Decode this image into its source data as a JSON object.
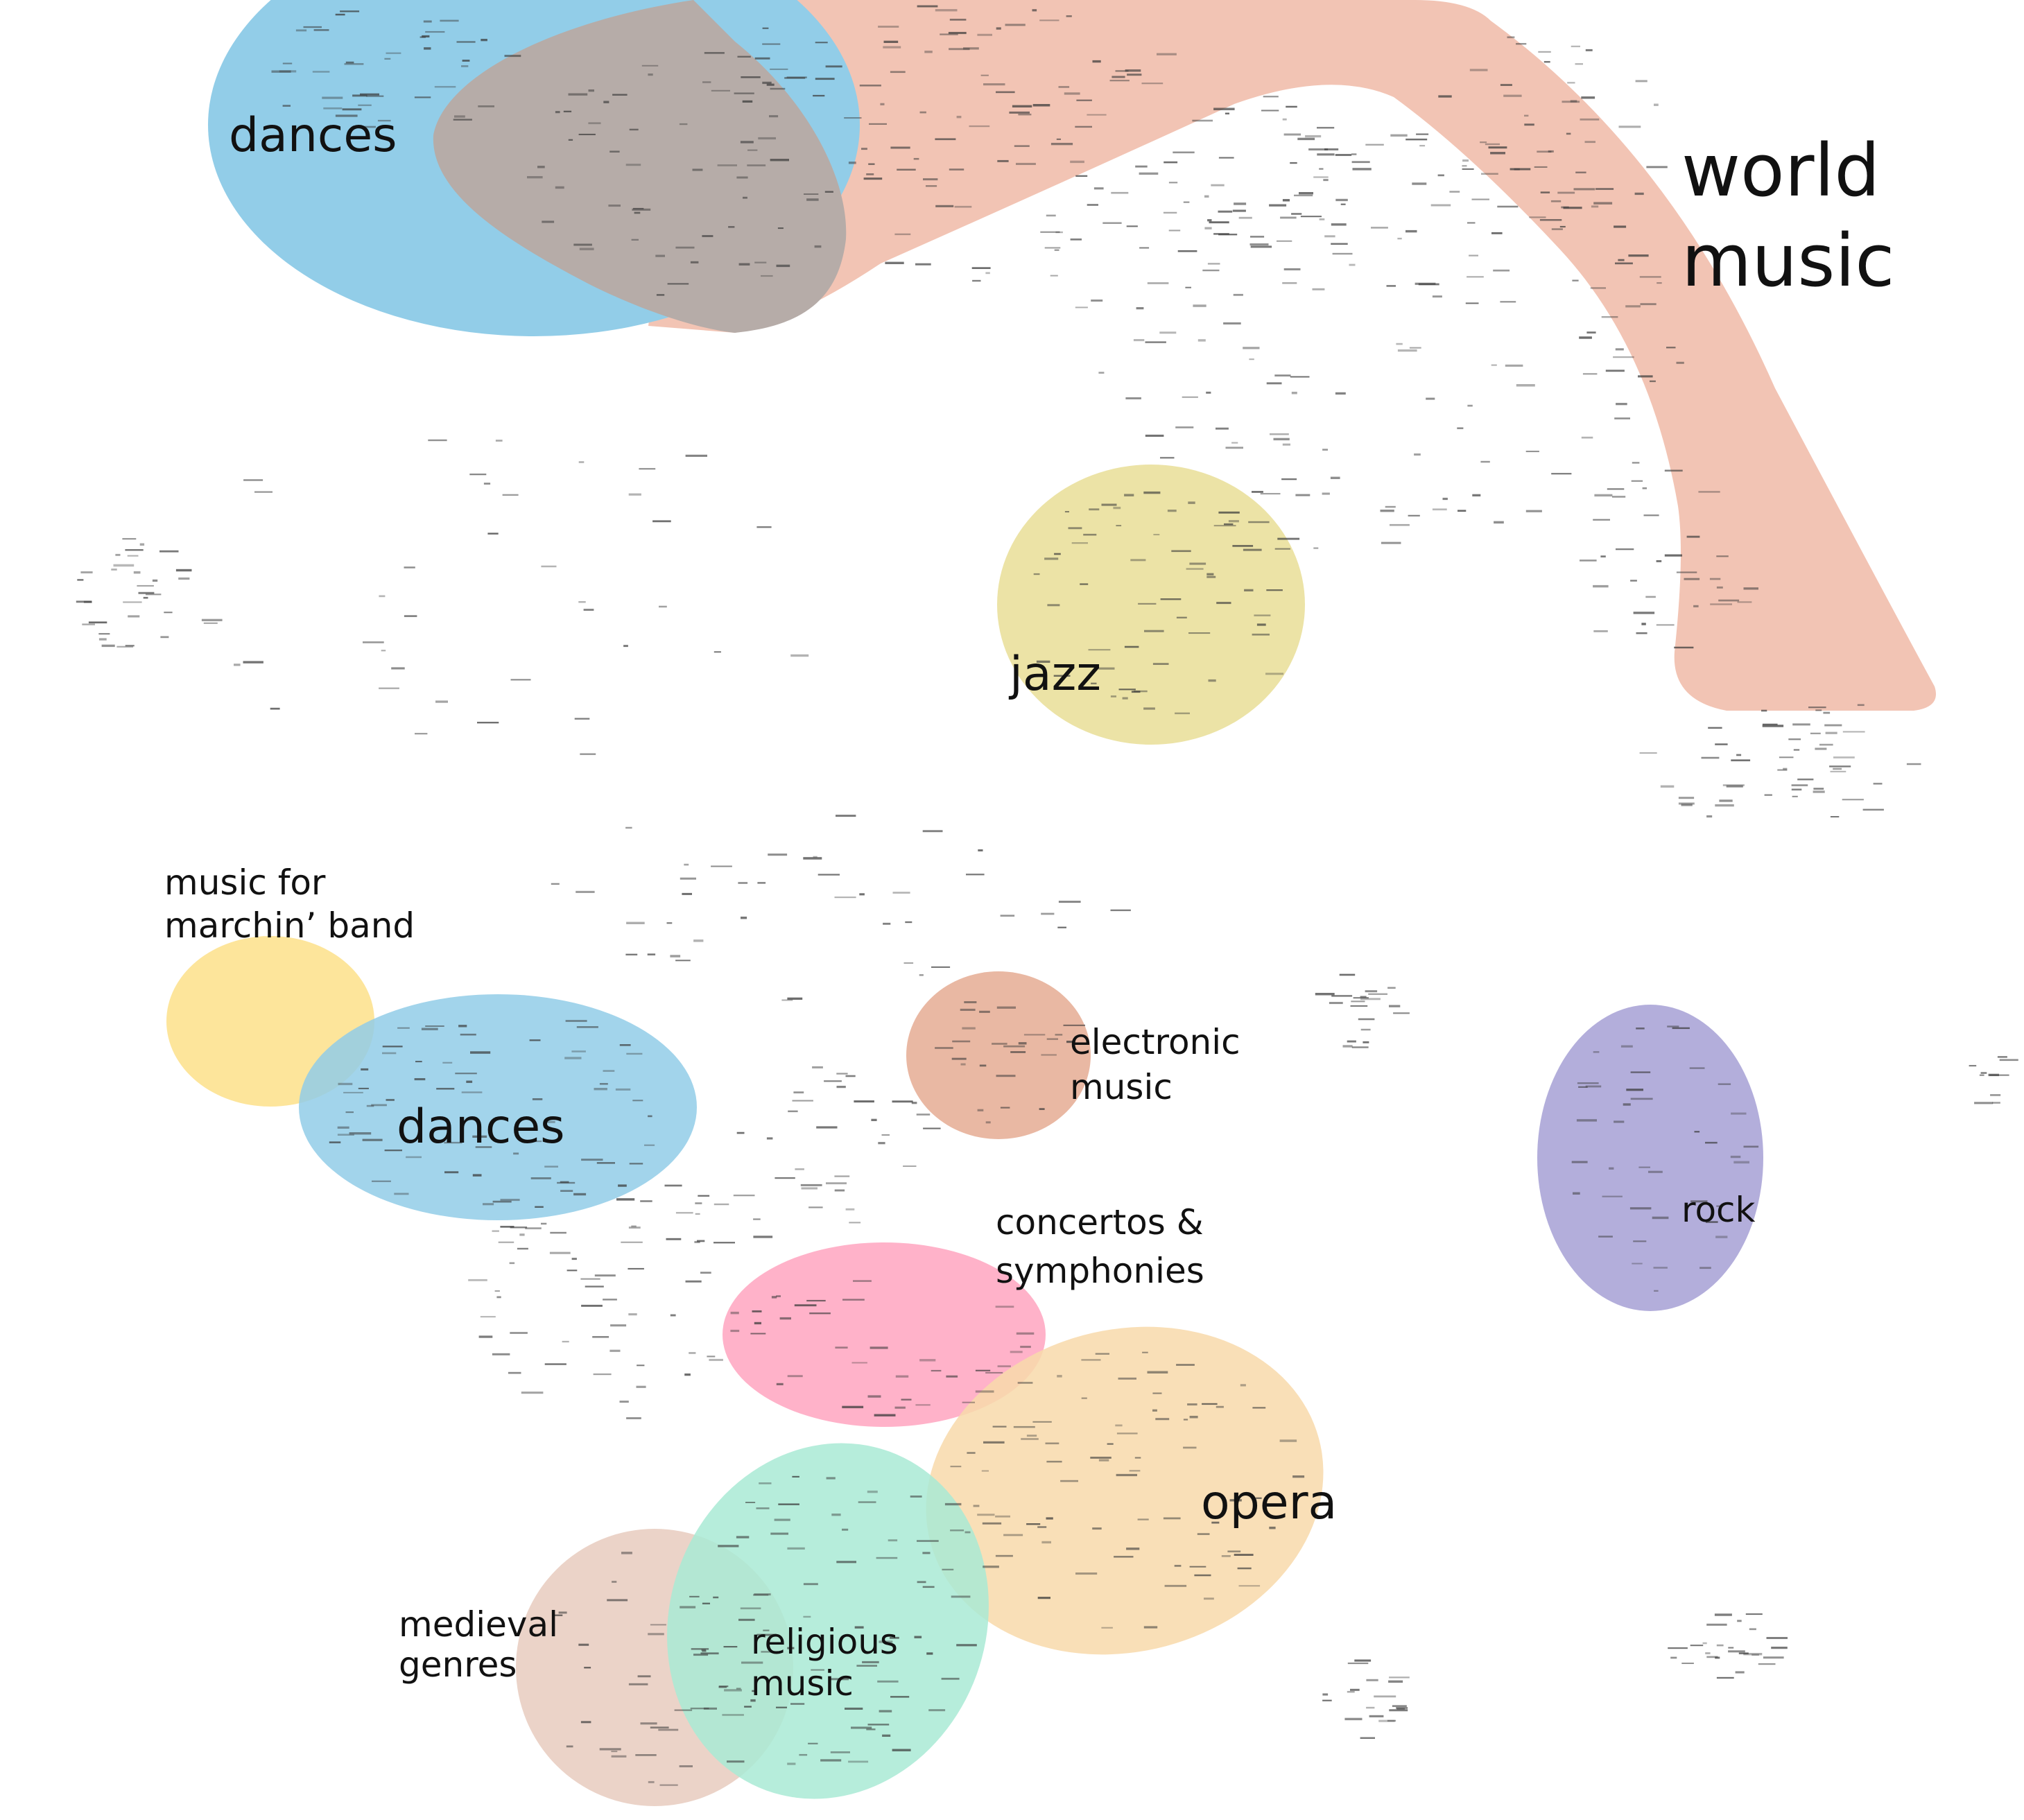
{
  "colors": {
    "world_music": "#f2c4b4",
    "dances": "#92cde8",
    "overlap": "#b6aca8",
    "jazz": "#ece3a6",
    "marching": "#fde08a",
    "electronic": "#e9b8a3",
    "rock": "#b3aedb",
    "concertos": "#ffa5c0",
    "opera": "#f8d9aa",
    "religious": "#a9ead5",
    "medieval": "#e7cbbe",
    "node": "#3a3a3a"
  },
  "labels": {
    "world_music": [
      "world",
      "music"
    ],
    "dances_top": [
      "dances"
    ],
    "jazz": [
      "jazz"
    ],
    "marching": [
      "music for",
      "marchin’ band"
    ],
    "dances_mid": [
      "dances"
    ],
    "electronic": [
      "electronic",
      "music"
    ],
    "rock": [
      "rock"
    ],
    "concertos": [
      "concertos &",
      "symphonies"
    ],
    "opera": [
      "opera"
    ],
    "medieval": [
      "medieval",
      "genres"
    ],
    "religious": [
      "religious",
      "music"
    ]
  }
}
